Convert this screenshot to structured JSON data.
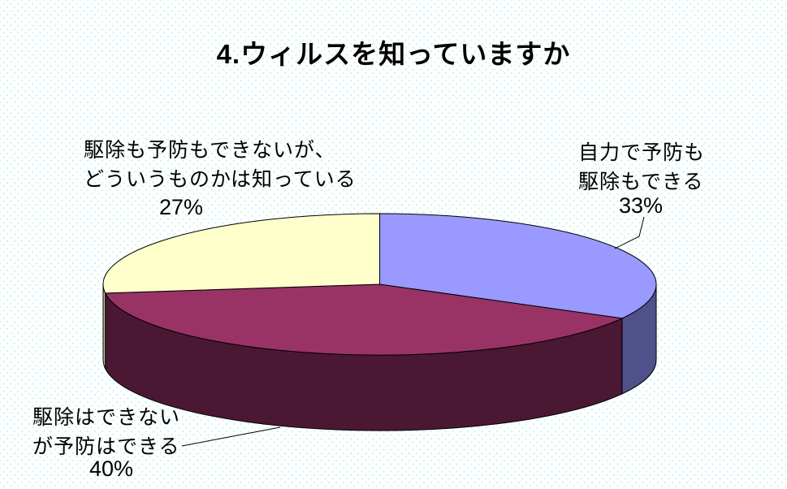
{
  "title": "4.ウィルスを知っていますか",
  "chart_data": {
    "type": "pie",
    "style": "3d-exploded-none",
    "title": "4.ウィルスを知っていますか",
    "start_angle_deg": 0,
    "direction": "clockwise",
    "legend": "none",
    "background_pattern_color": "#c9f6f6",
    "slices": [
      {
        "label": "自力で予防も駆除もできる",
        "label_lines": [
          "自力で予防も",
          "駆除もできる"
        ],
        "value": 33,
        "pct_label": "33%",
        "color": "#9999ff",
        "side_color": "#50508a"
      },
      {
        "label": "駆除はできないが予防はできる",
        "label_lines": [
          "駆除はできない",
          "が予防はできる"
        ],
        "value": 40,
        "pct_label": "40%",
        "color": "#993366",
        "side_color": "#4a1833"
      },
      {
        "label": "駆除も予防もできないが、どういうものかは知っている",
        "label_lines": [
          "駆除も予防もできないが、",
          "どういうものかは知っている"
        ],
        "value": 27,
        "pct_label": "27%",
        "color": "#ffffcc",
        "side_color": "#bfbf99"
      }
    ]
  }
}
